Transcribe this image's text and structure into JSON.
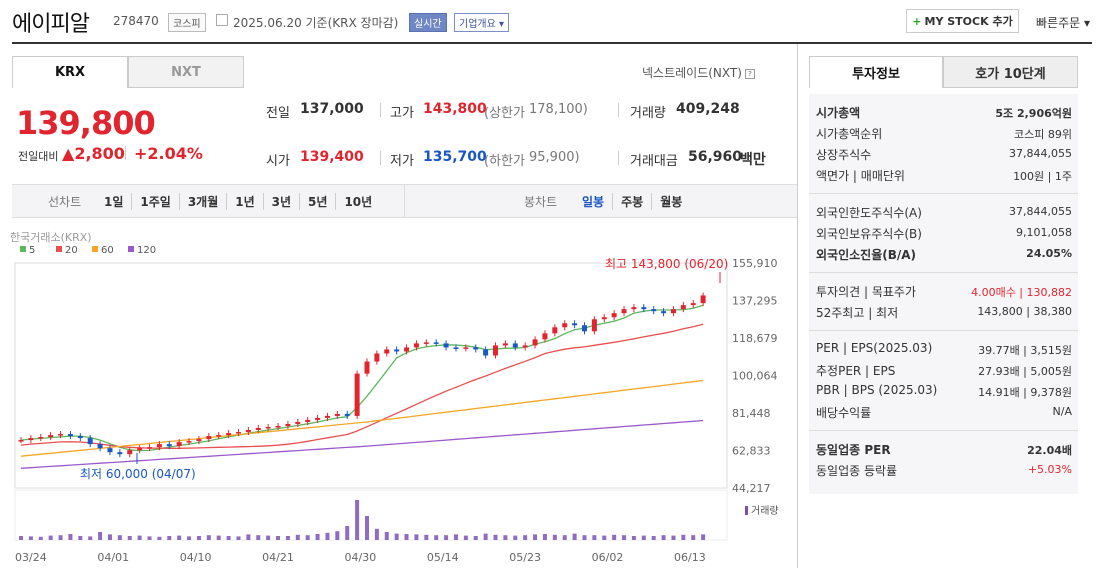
{
  "header": {
    "name": "에이피알",
    "code": "278470",
    "market": "코스피",
    "date": "2025.06.20 기준(KRX 장마감)",
    "realtime": "실시간",
    "corp_info": "기업개요",
    "my_stock": "MY STOCK 추가",
    "quick_order": "빠른주문"
  },
  "exchange_tabs": [
    "KRX",
    "NXT"
  ],
  "nxt_link": "넥스트레이드(NXT)",
  "price": {
    "current": "139,800",
    "diff_label": "전일대비",
    "diff": "2,800",
    "pct": "+2.04%"
  },
  "quote": {
    "prev_label": "전일",
    "prev": "137,000",
    "high_label": "고가",
    "high": "143,800",
    "upper_label": "(상한가",
    "upper": "178,100)",
    "vol_label": "거래량",
    "vol": "409,248",
    "open_label": "시가",
    "open": "139,400",
    "low_label": "저가",
    "low": "135,700",
    "lower_label": "(하한가",
    "lower": "95,900)",
    "amount_label": "거래대금",
    "amount": "56,960",
    "amount_unit": "백만"
  },
  "periods": {
    "line_label": "선차트",
    "items": [
      "1일",
      "1주일",
      "3개월",
      "1년",
      "3년",
      "5년",
      "10년"
    ],
    "candle_label": "봉차트",
    "candle_items": [
      "일봉",
      "주봉",
      "월봉"
    ]
  },
  "chart_data": {
    "type": "candlestick",
    "source": "한국거래소(KRX)",
    "ma": [
      "5",
      "20",
      "60",
      "120"
    ],
    "ma_colors": [
      "#5cb85c",
      "#e94f4f",
      "#f5a623",
      "#9b59c9"
    ],
    "x_labels": [
      "03/24",
      "04/01",
      "04/10",
      "04/21",
      "04/30",
      "05/14",
      "05/23",
      "06/02",
      "06/13"
    ],
    "y_ticks": [
      "155,910",
      "137,295",
      "118,679",
      "100,064",
      "81,448",
      "62,833",
      "44,217"
    ],
    "high_note": "최고 143,800 (06/20)",
    "low_note": "최저 60,000 (04/07)",
    "volume_label": "거래량",
    "closes": [
      68000,
      69000,
      69500,
      70500,
      71000,
      70000,
      69000,
      66000,
      64000,
      62000,
      61000,
      63000,
      64000,
      64500,
      66000,
      65000,
      67000,
      67500,
      68500,
      70000,
      70500,
      71500,
      72000,
      73000,
      74000,
      74500,
      75000,
      76000,
      77000,
      78000,
      79000,
      80000,
      81000,
      80000,
      101000,
      107000,
      111000,
      113000,
      112000,
      114000,
      116000,
      116500,
      116000,
      114000,
      113500,
      114000,
      113000,
      110000,
      115000,
      116000,
      114000,
      115000,
      118000,
      121000,
      124000,
      126000,
      125000,
      122000,
      128000,
      129000,
      131000,
      133000,
      134000,
      133000,
      132000,
      131000,
      133000,
      135000,
      136000,
      139800
    ],
    "volumes": [
      10,
      9,
      8,
      11,
      12,
      15,
      10,
      9,
      20,
      14,
      12,
      10,
      11,
      9,
      8,
      10,
      11,
      9,
      10,
      12,
      11,
      10,
      9,
      14,
      12,
      11,
      10,
      10,
      13,
      12,
      15,
      18,
      22,
      35,
      100,
      60,
      28,
      20,
      16,
      15,
      14,
      13,
      12,
      12,
      14,
      11,
      10,
      16,
      13,
      12,
      11,
      12,
      14,
      15,
      13,
      12,
      16,
      12,
      12,
      11,
      13,
      12,
      10,
      11,
      10,
      12,
      11,
      13,
      12,
      14
    ]
  },
  "invest": {
    "tabs": [
      "투자정보",
      "호가 10단계"
    ],
    "rows1": [
      {
        "k": "시가총액",
        "v": "5조 2,906억원",
        "bold": true
      },
      {
        "k": "시가총액순위",
        "v": "코스피 89위"
      },
      {
        "k": "상장주식수",
        "v": "37,844,055"
      },
      {
        "k": "액면가 | 매매단위",
        "v": "100원 | 1주"
      }
    ],
    "rows2": [
      {
        "k": "외국인한도주식수(A)",
        "v": "37,844,055"
      },
      {
        "k": "외국인보유주식수(B)",
        "v": "9,101,058"
      },
      {
        "k": "외국인소진율(B/A)",
        "v": "24.05%",
        "bold": true
      }
    ],
    "rows3": [
      {
        "k": "투자의견 | 목표주가",
        "v": "4.00매수 | 130,882",
        "red": true
      },
      {
        "k": "52주최고 | 최저",
        "v": "143,800 | 38,380"
      }
    ],
    "rows4": [
      {
        "k": "PER | EPS(2025.03)",
        "v": "39.77배 | 3,515원"
      },
      {
        "k": "추정PER | EPS",
        "v": "27.93배 | 5,005원"
      },
      {
        "k": "PBR | BPS (2025.03)",
        "v": "14.91배 | 9,378원"
      },
      {
        "k": "배당수익률",
        "v": "N/A"
      }
    ],
    "rows5": [
      {
        "k": "동일업종 PER",
        "v": "22.04배",
        "bold": true
      },
      {
        "k": "동일업종 등락률",
        "v": "+5.03%",
        "red": true
      }
    ]
  }
}
